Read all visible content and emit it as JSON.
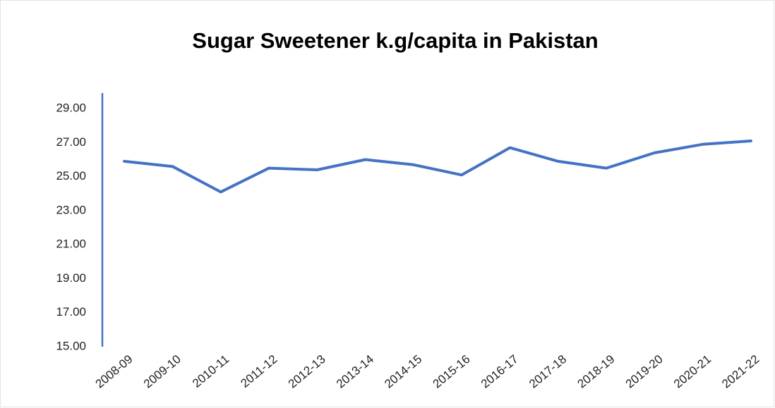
{
  "chart_data": {
    "type": "line",
    "title": "Sugar Sweetener k.g/capita in Pakistan",
    "categories": [
      "2008-09",
      "2009-10",
      "2010-11",
      "2011-12",
      "2012-13",
      "2013-14",
      "2014-15",
      "2015-16",
      "2016-17",
      "2017-18",
      "2018-19",
      "2019-20",
      "2020-21",
      "2021-22"
    ],
    "values": [
      25.9,
      25.6,
      24.1,
      25.5,
      25.4,
      26.0,
      25.7,
      25.1,
      26.7,
      25.9,
      25.5,
      26.4,
      26.9,
      27.1
    ],
    "color": "#4472c4",
    "ylim": [
      15,
      30
    ],
    "yticks": [
      {
        "value": 15,
        "label": "15.00"
      },
      {
        "value": 17,
        "label": "17.00"
      },
      {
        "value": 19,
        "label": "19.00"
      },
      {
        "value": 21,
        "label": "21.00"
      },
      {
        "value": 23,
        "label": "23.00"
      },
      {
        "value": 25,
        "label": "25.00"
      },
      {
        "value": 27,
        "label": "27.00"
      },
      {
        "value": 29,
        "label": "29.00"
      }
    ],
    "grid": false
  }
}
